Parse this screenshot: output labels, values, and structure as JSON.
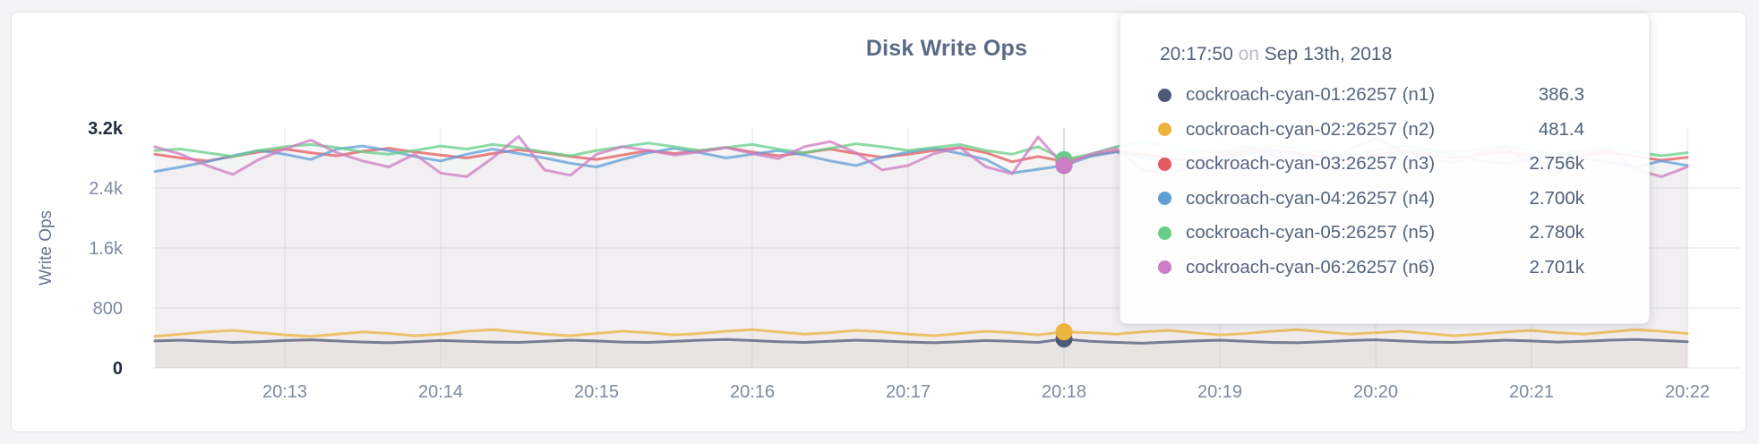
{
  "title": "Disk Write Ops",
  "tooltip": {
    "time": "20:17:50",
    "conjunction": "on",
    "date": "Sep 13th, 2018",
    "rows": [
      {
        "label": "cockroach-cyan-01:26257 (n1)",
        "value": "386.3",
        "color": "#4d5a75"
      },
      {
        "label": "cockroach-cyan-02:26257 (n2)",
        "value": "481.4",
        "color": "#ecb33d"
      },
      {
        "label": "cockroach-cyan-03:26257 (n3)",
        "value": "2.756k",
        "color": "#e25a5f"
      },
      {
        "label": "cockroach-cyan-04:26257 (n4)",
        "value": "2.700k",
        "color": "#5f9ed6"
      },
      {
        "label": "cockroach-cyan-05:26257 (n5)",
        "value": "2.780k",
        "color": "#67cd88"
      },
      {
        "label": "cockroach-cyan-06:26257 (n6)",
        "value": "2.701k",
        "color": "#cc7cc2"
      }
    ]
  },
  "chart_data": {
    "type": "line",
    "title": "Disk Write Ops",
    "ylabel": "Write Ops",
    "ylim": [
      0,
      3200
    ],
    "grid": true,
    "x_description": "time, one sample every 10 seconds starting 20:12:10 on Sep 13th, 2018",
    "x_ticks": [
      {
        "label": "20:13",
        "t": 50
      },
      {
        "label": "20:14",
        "t": 110
      },
      {
        "label": "20:15",
        "t": 170
      },
      {
        "label": "20:16",
        "t": 230
      },
      {
        "label": "20:17",
        "t": 290
      },
      {
        "label": "20:18",
        "t": 350
      },
      {
        "label": "20:19",
        "t": 410
      },
      {
        "label": "20:20",
        "t": 470
      },
      {
        "label": "20:21",
        "t": 530
      },
      {
        "label": "20:22",
        "t": 590
      }
    ],
    "y_ticks": [
      {
        "label": "3.2k",
        "value": 3200,
        "strong": true,
        "line": false
      },
      {
        "label": "2.4k",
        "value": 2400,
        "strong": false,
        "line": true
      },
      {
        "label": "1.6k",
        "value": 1600,
        "strong": false,
        "line": true
      },
      {
        "label": "800",
        "value": 800,
        "strong": false,
        "line": true
      },
      {
        "label": "0",
        "value": 0,
        "strong": true,
        "line": false
      }
    ],
    "highlight": {
      "index": 35,
      "time": "20:17:50"
    },
    "series": [
      {
        "name": "cockroach-cyan-01:26257 (n1)",
        "color": "#4d5a75",
        "fill_opacity": 0.045,
        "values": [
          360,
          370,
          355,
          340,
          350,
          365,
          375,
          360,
          345,
          335,
          350,
          365,
          355,
          345,
          340,
          355,
          370,
          360,
          345,
          340,
          355,
          370,
          380,
          365,
          350,
          340,
          355,
          370,
          360,
          345,
          335,
          350,
          365,
          355,
          340,
          386,
          355,
          340,
          330,
          345,
          360,
          370,
          355,
          340,
          335,
          350,
          365,
          375,
          360,
          345,
          340,
          355,
          370,
          360,
          345,
          355,
          370,
          380,
          365,
          350
        ]
      },
      {
        "name": "cockroach-cyan-02:26257 (n2)",
        "color": "#ecb33d",
        "fill_opacity": 0.05,
        "values": [
          420,
          450,
          480,
          500,
          470,
          440,
          420,
          450,
          480,
          460,
          430,
          450,
          490,
          510,
          480,
          450,
          430,
          460,
          490,
          470,
          440,
          460,
          490,
          510,
          480,
          450,
          470,
          500,
          480,
          450,
          430,
          460,
          490,
          470,
          440,
          481,
          470,
          450,
          480,
          500,
          470,
          440,
          460,
          490,
          510,
          480,
          450,
          470,
          490,
          460,
          430,
          450,
          480,
          500,
          470,
          450,
          480,
          510,
          490,
          460
        ]
      },
      {
        "name": "cockroach-cyan-03:26257 (n3)",
        "color": "#e25a5f",
        "fill_opacity": 0.035,
        "values": [
          2850,
          2800,
          2760,
          2820,
          2880,
          2920,
          2870,
          2830,
          2890,
          2930,
          2880,
          2840,
          2800,
          2860,
          2910,
          2870,
          2820,
          2780,
          2840,
          2900,
          2860,
          2900,
          2940,
          2880,
          2830,
          2870,
          2920,
          2860,
          2810,
          2850,
          2900,
          2940,
          2870,
          2750,
          2820,
          2756,
          2830,
          2890,
          2850,
          2800,
          2760,
          2830,
          2890,
          2920,
          2860,
          2810,
          2770,
          2840,
          2900,
          2850,
          2800,
          2840,
          2890,
          2830,
          2780,
          2830,
          2880,
          2820,
          2770,
          2810
        ]
      },
      {
        "name": "cockroach-cyan-04:26257 (n4)",
        "color": "#5f9ed6",
        "fill_opacity": 0.035,
        "values": [
          2620,
          2680,
          2750,
          2830,
          2900,
          2850,
          2780,
          2920,
          2960,
          2900,
          2820,
          2760,
          2850,
          2920,
          2860,
          2800,
          2730,
          2680,
          2780,
          2870,
          2930,
          2870,
          2800,
          2850,
          2900,
          2840,
          2760,
          2700,
          2810,
          2880,
          2930,
          2860,
          2780,
          2600,
          2650,
          2700,
          2820,
          2880,
          2810,
          2740,
          2690,
          2780,
          2860,
          2900,
          2830,
          2750,
          2700,
          2790,
          2870,
          2910,
          2840,
          2770,
          2720,
          2800,
          2860,
          2800,
          2740,
          2680,
          2760,
          2700
        ]
      },
      {
        "name": "cockroach-cyan-05:26257 (n5)",
        "color": "#67cd88",
        "fill_opacity": 0.035,
        "values": [
          2900,
          2920,
          2870,
          2820,
          2900,
          2950,
          2980,
          2940,
          2880,
          2850,
          2900,
          2960,
          2920,
          2980,
          2940,
          2880,
          2830,
          2900,
          2950,
          3000,
          2950,
          2900,
          2940,
          2980,
          2920,
          2870,
          2930,
          2990,
          2950,
          2900,
          2940,
          2980,
          2900,
          2850,
          2950,
          2780,
          2850,
          2950,
          3010,
          2960,
          2900,
          2860,
          2920,
          2970,
          2930,
          2880,
          2840,
          2900,
          2960,
          2920,
          2870,
          2910,
          2960,
          2900,
          2850,
          2900,
          2940,
          2880,
          2830,
          2870
        ]
      },
      {
        "name": "cockroach-cyan-06:26257 (n6)",
        "color": "#cc7cc2",
        "fill_opacity": 0.035,
        "values": [
          2950,
          2850,
          2700,
          2580,
          2780,
          2920,
          3040,
          2870,
          2760,
          2680,
          2850,
          2600,
          2550,
          2800,
          3090,
          2640,
          2570,
          2850,
          2950,
          2900,
          2840,
          2880,
          2940,
          2860,
          2790,
          2950,
          3020,
          2870,
          2640,
          2700,
          2860,
          2940,
          2680,
          2590,
          3080,
          2701,
          2850,
          2930,
          2650,
          2580,
          2700,
          2880,
          2950,
          2830,
          2760,
          2690,
          2920,
          3060,
          2900,
          2800,
          2740,
          2860,
          2950,
          2700,
          2600,
          2850,
          2920,
          2650,
          2550,
          2680
        ]
      }
    ]
  }
}
